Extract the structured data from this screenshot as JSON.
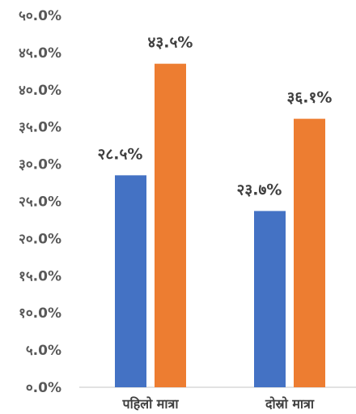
{
  "chart_data": {
    "type": "bar",
    "categories": [
      "पहिलो मात्रा",
      "दोस्रो मात्रा"
    ],
    "series": [
      {
        "color": "#4472C4",
        "values": [
          28.5,
          23.7
        ],
        "value_labels": [
          "२८.५%",
          "२३.७%"
        ]
      },
      {
        "color": "#ED7D31",
        "values": [
          43.5,
          36.1
        ],
        "value_labels": [
          "४३.५%",
          "३६.१%"
        ]
      }
    ],
    "ylim": [
      0,
      50
    ],
    "yticks": [
      0,
      5,
      10,
      15,
      20,
      25,
      30,
      35,
      40,
      45,
      50
    ],
    "ytick_labels": [
      "०.0%",
      "५.0%",
      "१०.0%",
      "१५.0%",
      "२०.0%",
      "२५.0%",
      "३०.0%",
      "३५.0%",
      "४०.0%",
      "४५.0%",
      "५०.0%"
    ],
    "grid": false,
    "legend": "none",
    "title": "",
    "xlabel": "",
    "ylabel": ""
  }
}
